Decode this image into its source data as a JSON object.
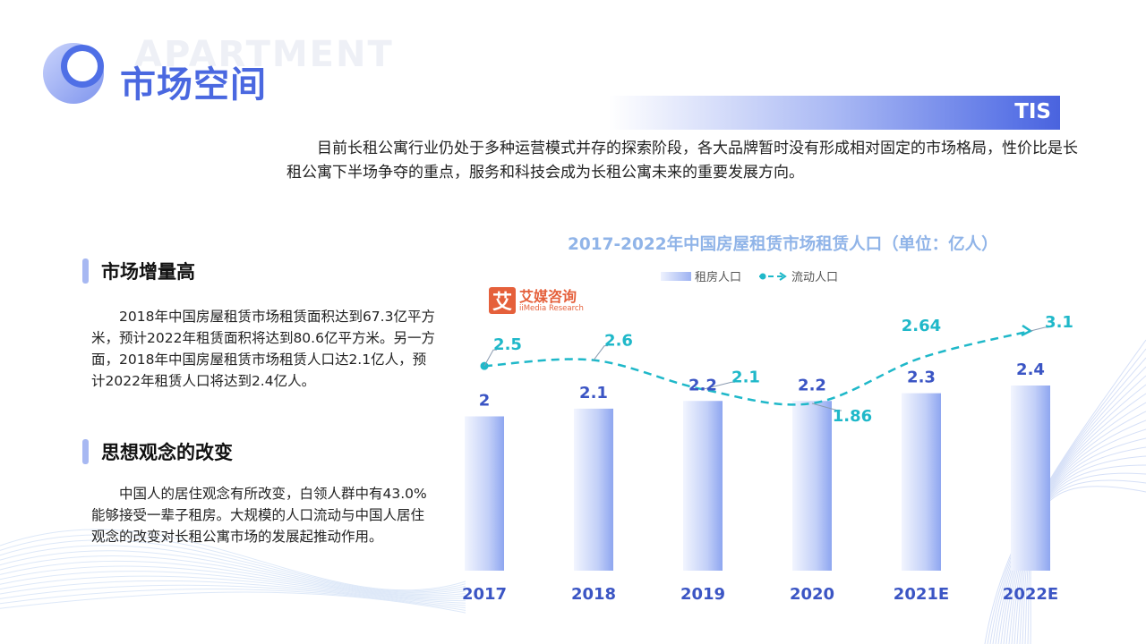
{
  "header": {
    "watermark": "APARTMENT",
    "title": "市场空间",
    "tag": "TIS"
  },
  "intro": "目前长租公寓行业仍处于多种运营模式并存的探索阶段，各大品牌暂时没有形成相对固定的市场格局，性价比是长租公寓下半场争夺的重点，服务和科技会成为长租公寓未来的重要发展方向。",
  "sections": [
    {
      "heading": "市场增量高",
      "text": "2018年中国房屋租赁市场租赁面积达到67.3亿平方米，预计2022年租赁面积将达到80.6亿平方米。另一方面，2018年中国房屋租赁市场租赁人口达2.1亿人，预计2022年租赁人口将达到2.4亿人。"
    },
    {
      "heading": "思想观念的改变",
      "text": "中国人的居住观念有所改变，白领人群中有43.0%能够接受一辈子租房。大规模的人口流动与中国人居住观念的改变对长租公寓市场的发展起推动作用。"
    }
  ],
  "brand": {
    "icon_char": "艾",
    "name_cn": "艾媒咨询",
    "name_en": "iiMedia Research"
  },
  "chart_data": {
    "type": "bar",
    "title": "2017-2022年中国房屋租赁市场租赁人口（单位：亿人）",
    "categories": [
      "2017",
      "2018",
      "2019",
      "2020",
      "2021E",
      "2022E"
    ],
    "series": [
      {
        "name": "租房人口",
        "type": "bar",
        "values": [
          2,
          2.1,
          2.2,
          2.2,
          2.3,
          2.4
        ],
        "labels": [
          "2",
          "2.1",
          "2.2",
          "2.2",
          "2.3",
          "2.4"
        ],
        "color": "#9db2f2"
      },
      {
        "name": "流动人口",
        "type": "line",
        "values": [
          2.5,
          2.6,
          2.1,
          1.86,
          2.64,
          3.1
        ],
        "labels": [
          "2.5",
          "2.6",
          "2.1",
          "1.86",
          "2.64",
          "3.1"
        ],
        "color": "#1fb8c9"
      }
    ],
    "legend_position": "top",
    "grid": false,
    "bar_ylim": [
      0,
      2.4
    ],
    "line_ylim": [
      1.4,
      3.1
    ]
  },
  "colors": {
    "accent": "#4a68e0",
    "bar_label": "#3b55c4",
    "line": "#1fb8c9",
    "axis_label": "#3b55c4"
  }
}
